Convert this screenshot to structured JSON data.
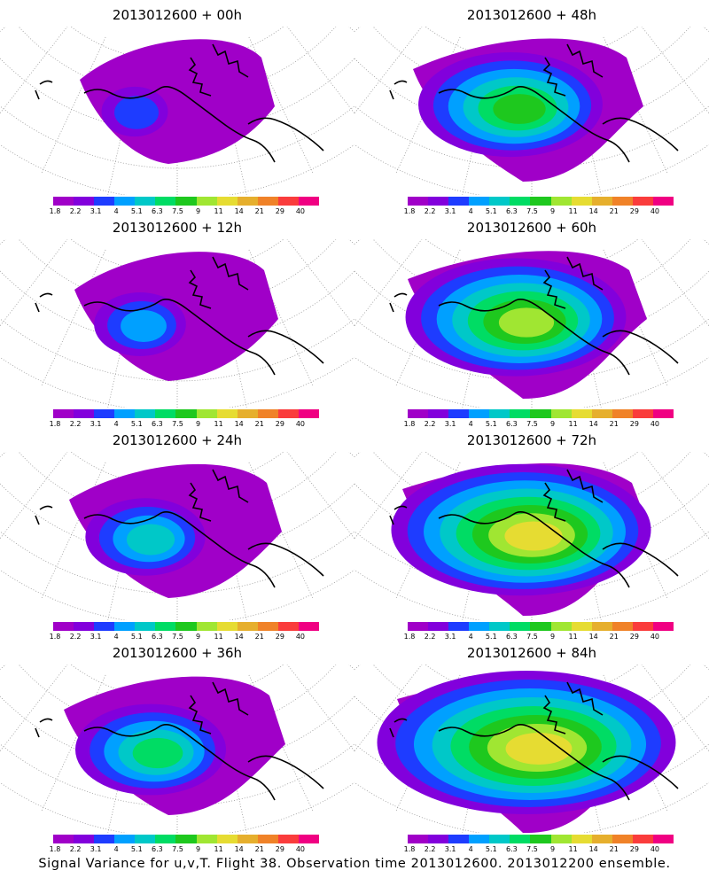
{
  "caption": "Signal Variance for u,v,T. Flight 38. Observation time 2013012600. 2013012200 ensemble.",
  "colorbar": {
    "colors": [
      "#a000c8",
      "#8200dc",
      "#1e3cff",
      "#00a0ff",
      "#00c8c8",
      "#00dc64",
      "#1ec81e",
      "#a0e632",
      "#e6dc32",
      "#e6af2d",
      "#f08228",
      "#fa3c3c",
      "#f00082"
    ],
    "ticks": [
      "1.8",
      "2.2",
      "3.1",
      "4",
      "5.1",
      "6.3",
      "7.5",
      "9",
      "11",
      "14",
      "21",
      "29",
      "40"
    ]
  },
  "panels": [
    {
      "title": "2013012600 + 00h",
      "level": 0
    },
    {
      "title": "2013012600 + 48h",
      "level": 4
    },
    {
      "title": "2013012600 + 12h",
      "level": 1
    },
    {
      "title": "2013012600 + 60h",
      "level": 5
    },
    {
      "title": "2013012600 + 24h",
      "level": 2
    },
    {
      "title": "2013012600 + 72h",
      "level": 6
    },
    {
      "title": "2013012600 + 36h",
      "level": 3
    },
    {
      "title": "2013012600 + 84h",
      "level": 7
    }
  ]
}
